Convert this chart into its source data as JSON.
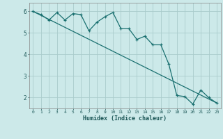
{
  "xlabel": "Humidex (Indice chaleur)",
  "background_color": "#cce9e9",
  "grid_color": "#aacccc",
  "line_color": "#1a7070",
  "x_ticks": [
    0,
    1,
    2,
    3,
    4,
    5,
    6,
    7,
    8,
    9,
    10,
    11,
    12,
    13,
    14,
    15,
    16,
    17,
    18,
    19,
    20,
    21,
    22,
    23
  ],
  "y_ticks": [
    2,
    3,
    4,
    5,
    6
  ],
  "xlim": [
    -0.5,
    23.5
  ],
  "ylim": [
    1.5,
    6.4
  ],
  "line1_x": [
    0,
    1,
    2,
    3,
    4,
    5,
    6,
    7,
    8,
    9,
    10,
    11,
    12,
    13,
    14,
    15,
    16,
    17,
    18,
    19,
    20,
    21,
    22,
    23
  ],
  "line1_y": [
    6.0,
    5.85,
    5.6,
    5.95,
    5.6,
    5.9,
    5.85,
    5.1,
    5.5,
    5.75,
    5.95,
    5.2,
    5.2,
    4.7,
    4.85,
    4.45,
    4.45,
    3.55,
    2.1,
    2.05,
    1.7,
    2.35,
    2.0,
    1.75
  ],
  "line2_x": [
    0,
    23
  ],
  "line2_y": [
    6.0,
    1.75
  ]
}
